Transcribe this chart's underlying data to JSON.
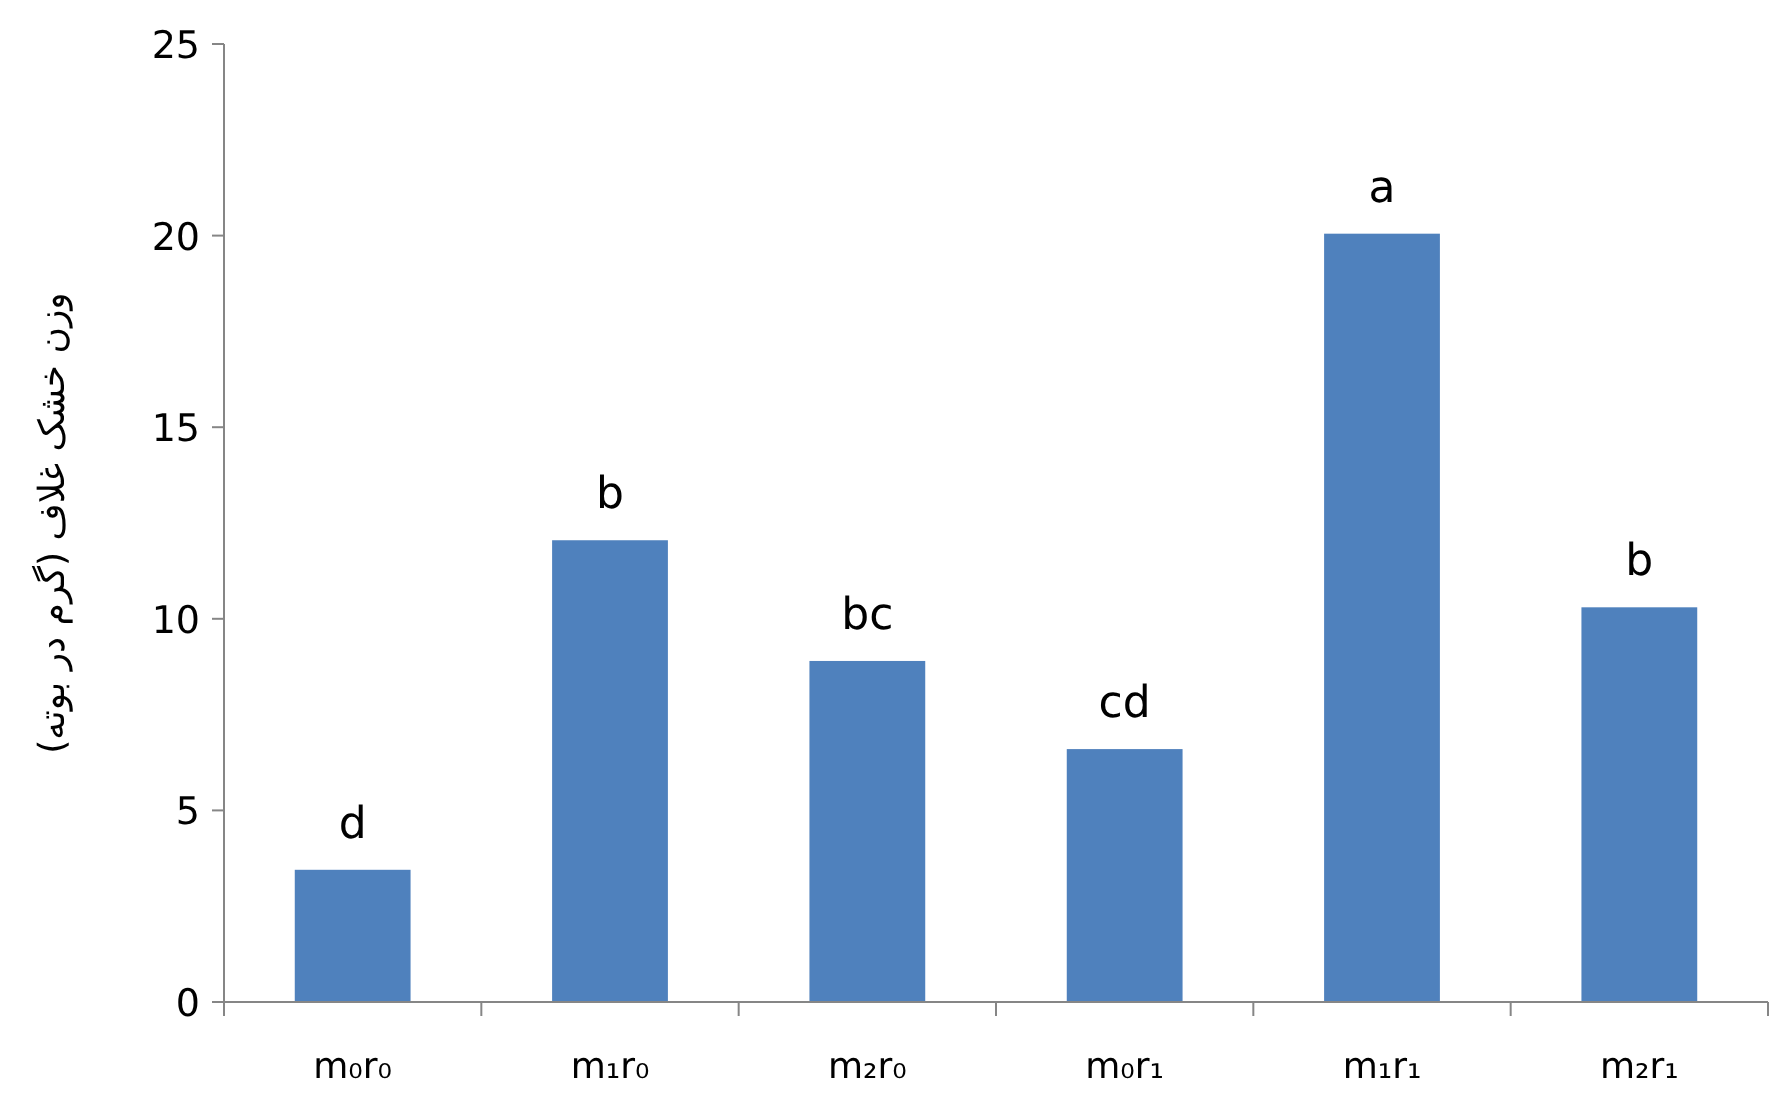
{
  "chart_data": {
    "type": "bar",
    "ylabel": "وزن خشک غلاف (گرم در بوته)",
    "categories": [
      "m₀r₀",
      "m₁r₀",
      "m₂r₀",
      "m₀r₁",
      "m₁r₁",
      "m₂r₁"
    ],
    "values": [
      3.45,
      12.05,
      8.9,
      6.6,
      20.05,
      10.3
    ],
    "color": "#4f81bd",
    "ylim": [
      0,
      25
    ],
    "yticks": [
      0,
      5,
      10,
      15,
      20,
      25
    ],
    "grid": false,
    "annotations": [
      {
        "text": "d",
        "x": "m₀r₀",
        "y": 3.45
      },
      {
        "text": "b",
        "x": "m₁r₀",
        "y": 12.05
      },
      {
        "text": "bc",
        "x": "m₂r₀",
        "y": 8.9
      },
      {
        "text": "cd",
        "x": "m₀r₁",
        "y": 6.6
      },
      {
        "text": "a",
        "x": "m₁r₁",
        "y": 20.05
      },
      {
        "text": "b",
        "x": "m₂r₁",
        "y": 10.3
      }
    ]
  }
}
